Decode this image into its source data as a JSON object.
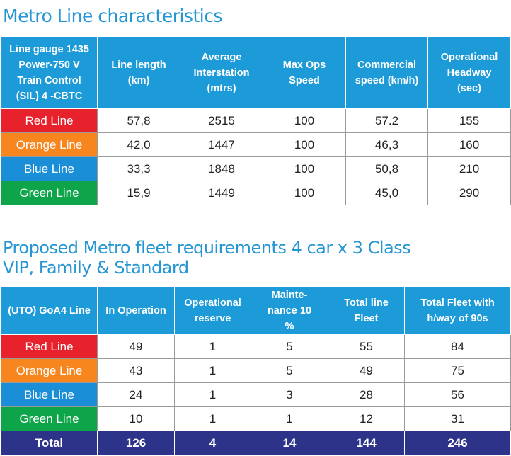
{
  "characteristics": {
    "title": "Metro Line characteristics",
    "headers": [
      "Line gauge 1435 Power-750 V Train Control (SIL) 4 -CBTC",
      "Line length (km)",
      "Average Interstation (mtrs)",
      "Max Ops Speed",
      "Commercial speed (km/h)",
      "Operational Headway (sec)"
    ],
    "rows": [
      {
        "line": "Red Line",
        "color": "#e8222c",
        "values": [
          "57,8",
          "2515",
          "100",
          "57.2",
          "155"
        ]
      },
      {
        "line": "Orange Line",
        "color": "#f7861f",
        "values": [
          "42,0",
          "1447",
          "100",
          "46,3",
          "160"
        ]
      },
      {
        "line": "Blue Line",
        "color": "#1a8fd8",
        "values": [
          "33,3",
          "1848",
          "100",
          "50,8",
          "210"
        ]
      },
      {
        "line": "Green Line",
        "color": "#0ea54a",
        "values": [
          "15,9",
          "1449",
          "100",
          "45,0",
          "290"
        ]
      }
    ]
  },
  "fleet": {
    "title_line1": "Proposed Metro fleet requirements 4 car x 3 Class",
    "title_line2": "VIP, Family & Standard",
    "headers": [
      "(UTO) GoA4 Line",
      "In Operation",
      "Operational reserve",
      "Mainte- nance 10 %",
      "Total line Fleet",
      "Total Fleet with h/way of 90s"
    ],
    "rows": [
      {
        "line": "Red Line",
        "color": "#e8222c",
        "values": [
          "49",
          "1",
          "5",
          "55",
          "84"
        ]
      },
      {
        "line": "Orange Line",
        "color": "#f7861f",
        "values": [
          "43",
          "1",
          "5",
          "49",
          "75"
        ]
      },
      {
        "line": "Blue Line",
        "color": "#1a8fd8",
        "values": [
          "24",
          "1",
          "3",
          "28",
          "56"
        ]
      },
      {
        "line": "Green Line",
        "color": "#0ea54a",
        "values": [
          "10",
          "1",
          "1",
          "12",
          "31"
        ]
      }
    ],
    "total": {
      "label": "Total",
      "values": [
        "126",
        "4",
        "14",
        "144",
        "246"
      ]
    }
  },
  "colors": {
    "header_blue": "#1d9ad8",
    "title_blue": "#2596d3",
    "total_navy": "#2d3389"
  }
}
